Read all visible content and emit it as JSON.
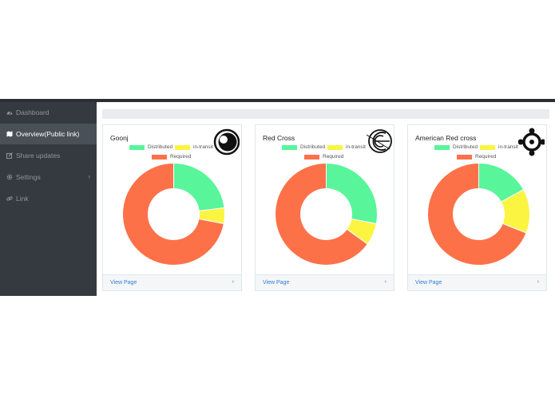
{
  "sidebar": {
    "items": [
      {
        "label": "Dashboard",
        "icon": "dashboard-icon",
        "active": false
      },
      {
        "label": "Overview(Public link)",
        "icon": "map-icon",
        "active": true
      },
      {
        "label": "Share updates",
        "icon": "edit-icon",
        "active": false
      },
      {
        "label": "Settings",
        "icon": "gear-icon",
        "active": false,
        "chevron": "›"
      },
      {
        "label": "Link",
        "icon": "link-icon",
        "active": false
      }
    ]
  },
  "legend": {
    "distributed": "Distributed",
    "in_transit": "in-transit",
    "required": "Required"
  },
  "colors": {
    "distributed": "#58f59a",
    "in_transit": "#fbf542",
    "required": "#fd7149"
  },
  "cards": [
    {
      "title": "Goonj",
      "logo": "goonj-logo",
      "link": "View Page",
      "chevron": "›",
      "chart_data": {
        "type": "pie",
        "categories": [
          "Distributed",
          "in-transit",
          "Required"
        ],
        "values": [
          23,
          5,
          72
        ]
      }
    },
    {
      "title": "Red Cross",
      "logo": "red-cross-logo",
      "link": "View Page",
      "chevron": "›",
      "chart_data": {
        "type": "pie",
        "categories": [
          "Distributed",
          "in-transit",
          "Required"
        ],
        "values": [
          28,
          7,
          65
        ]
      }
    },
    {
      "title": "American Red cross",
      "logo": "american-red-cross-logo",
      "link": "View Page",
      "chevron": "›",
      "chart_data": {
        "type": "pie",
        "categories": [
          "Distributed",
          "in-transit",
          "Required"
        ],
        "values": [
          17,
          14,
          69
        ]
      }
    }
  ]
}
